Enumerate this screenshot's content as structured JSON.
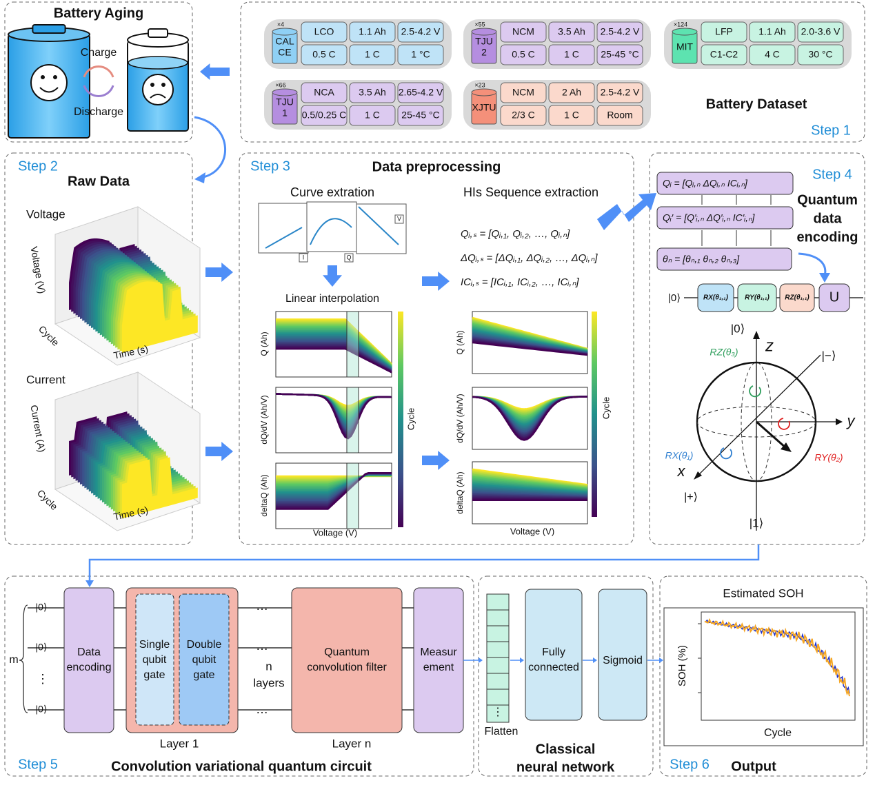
{
  "battery_aging": {
    "title": "Battery Aging",
    "charge": "Charge",
    "discharge": "Discharge"
  },
  "dataset": {
    "title": "Battery Dataset",
    "step": "Step 1",
    "groups": [
      {
        "count": "×4",
        "name": [
          "CAL",
          "CE"
        ],
        "cells": [
          "LCO",
          "1.1 Ah",
          "2.5-4.2 V",
          "0.5 C",
          "1 C",
          "1 °C"
        ]
      },
      {
        "count": "×55",
        "name": [
          "TJU",
          "2"
        ],
        "cells": [
          "NCM",
          "3.5 Ah",
          "2.5-4.2 V",
          "0.5 C",
          "1 C",
          "25-45 °C"
        ]
      },
      {
        "count": "×124",
        "name": [
          "MIT"
        ],
        "cells": [
          "LFP",
          "1.1 Ah",
          "2.0-3.6 V",
          "C1-C2",
          "4 C",
          "30 °C"
        ]
      },
      {
        "count": "×66",
        "name": [
          "TJU",
          "1"
        ],
        "cells": [
          "NCA",
          "3.5 Ah",
          "2.65-4.2 V",
          "0.5/0.25 C",
          "1 C",
          "25-45 °C"
        ]
      },
      {
        "count": "×23",
        "name": [
          "XJTU"
        ],
        "cells": [
          "NCM",
          "2 Ah",
          "2.5-4.2 V",
          "2/3 C",
          "1 C",
          "Room"
        ]
      }
    ]
  },
  "raw_data": {
    "step": "Step 2",
    "title": "Raw Data",
    "voltage": {
      "title": "Voltage",
      "z_label": "Voltage (V)",
      "y_label": "Cycle",
      "x_label": "Time (s)"
    },
    "current": {
      "title": "Current",
      "z_label": "Current (A)",
      "y_label": "Cycle",
      "x_label": "Time (s)"
    }
  },
  "preprocessing": {
    "step": "Step 3",
    "title": "Data preprocessing",
    "curve_title": "Curve extration",
    "curve_labels": [
      "I",
      "Q",
      "V"
    ],
    "interp_title": "Linear interpolation",
    "his_title": "HIs Sequence extraction",
    "equations": [
      "Qᵢ,ₛ = [Qᵢ,₁, Qᵢ,₂, …, Qᵢ,ₙ]",
      "ΔQᵢ,ₛ = [ΔQᵢ,₁, ΔQᵢ,₂, …, ΔQᵢ,ₙ]",
      "ICᵢ,ₛ = [ICᵢ,₁, ICᵢ,₂, …, ICᵢ,ₙ]"
    ],
    "left_plots": {
      "y_labels": [
        "Q (Ah)",
        "dQ/dV (Ah/V)",
        "deltaQ (Ah)"
      ],
      "x_label": "Voltage (V)",
      "colorbar": "Cycle"
    },
    "right_plots": {
      "y_labels": [
        "Q (Ah)",
        "dQ/dV (Ah/V)",
        "deltaQ (Ah)"
      ],
      "x_label": "Voltage (V)",
      "colorbar": "Cycle"
    }
  },
  "encoding": {
    "step": "Step 4",
    "title": [
      "Quantum",
      "data",
      "encoding"
    ],
    "equations": [
      "Qᵢ = [Qᵢ,ₙ    ΔQᵢ,ₙ    ICᵢ,ₙ]",
      "Qᵢ′ = [Q′ᵢ,ₙ    ΔQ′ᵢ,ₙ    IC′ᵢ,ₙ]",
      "θₙ = [θₙ,₁     θₙ,₂     θₙ,₃]"
    ],
    "ket0": "|0⟩",
    "gates": [
      "RX(θ₁,₁)",
      "RY(θ₁,₁)",
      "RZ(θ₁,₁)",
      "U"
    ],
    "bloch": {
      "top": "|0⟩",
      "z": "z",
      "minus": "|−⟩",
      "rz": "RZ(θ₃)",
      "y": "y",
      "rx": "RX(θ₁)",
      "ry": "RY(θ₂)",
      "x": "x",
      "plus": "|+⟩",
      "bottom": "|1⟩"
    }
  },
  "circuit": {
    "step": "Step 5",
    "title": "Convolution variational quantum circuit",
    "m": "m",
    "kets": [
      "|0⟩",
      "|0⟩",
      "|0⟩"
    ],
    "vdots": "⋮",
    "data_encoding": [
      "Data",
      "encoding"
    ],
    "single": [
      "Single",
      "qubit",
      "gate"
    ],
    "double": [
      "Double",
      "qubit",
      "gate"
    ],
    "dots": [
      "…",
      "…",
      "…"
    ],
    "n_layers": [
      "n",
      "layers"
    ],
    "filter": [
      "Quantum",
      "convolution filter"
    ],
    "measurement": [
      "Measur",
      "ement"
    ],
    "layer_1": "Layer 1",
    "layer_n": "Layer n"
  },
  "classical": {
    "title": [
      "Classical",
      "neural network"
    ],
    "flatten": "Flatten",
    "vdots": "⋮",
    "fully": [
      "Fully",
      "connected"
    ],
    "sigmoid": "Sigmoid"
  },
  "output": {
    "step": "Step 6",
    "title": "Output",
    "plot_title": "Estimated SOH",
    "y_label": "SOH (%)",
    "x_label": "Cycle"
  }
}
